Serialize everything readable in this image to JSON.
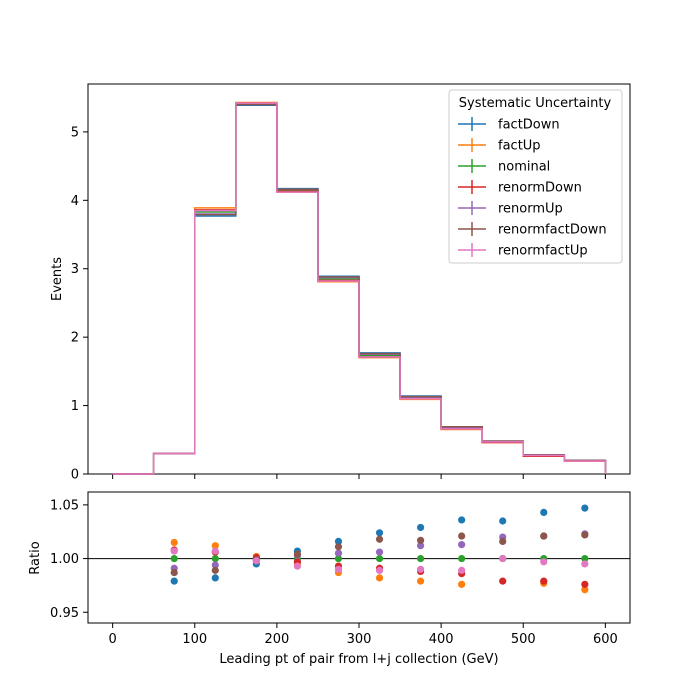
{
  "chart_data": {
    "type": "line",
    "xlabel": "Leading pt of pair from l+j collection (GeV)",
    "bin_edges": [
      0,
      50,
      100,
      150,
      200,
      250,
      300,
      350,
      400,
      450,
      500,
      550,
      600
    ],
    "xlim": [
      -30,
      630
    ],
    "main": {
      "ylabel": "Events",
      "ylim": [
        0,
        5.7
      ],
      "yticks": [
        0,
        1,
        2,
        3,
        4,
        5
      ],
      "legend": {
        "title": "Systematic Uncertainty",
        "placement": "top-right"
      },
      "series": [
        {
          "name": "factDown",
          "color": "#1f77b4",
          "values": [
            0.0,
            0.3,
            3.77,
            5.39,
            4.17,
            2.89,
            1.77,
            1.14,
            0.69,
            0.48,
            0.28,
            0.2
          ]
        },
        {
          "name": "factUp",
          "color": "#ff7f0e",
          "values": [
            0.0,
            0.3,
            3.89,
            5.43,
            4.12,
            2.81,
            1.7,
            1.09,
            0.65,
            0.46,
            0.26,
            0.19
          ]
        },
        {
          "name": "nominal",
          "color": "#2ca02c",
          "values": [
            0.0,
            0.3,
            3.83,
            5.41,
            4.14,
            2.85,
            1.73,
            1.11,
            0.67,
            0.47,
            0.27,
            0.2
          ]
        },
        {
          "name": "renormDown",
          "color": "#d62728",
          "values": [
            0.0,
            0.3,
            3.86,
            5.42,
            4.13,
            2.83,
            1.71,
            1.1,
            0.66,
            0.46,
            0.26,
            0.19
          ]
        },
        {
          "name": "renormUp",
          "color": "#9467bd",
          "values": [
            0.0,
            0.3,
            3.8,
            5.4,
            4.16,
            2.87,
            1.75,
            1.12,
            0.68,
            0.48,
            0.28,
            0.2
          ]
        },
        {
          "name": "renormfactDown",
          "color": "#8c564b",
          "values": [
            0.0,
            0.3,
            3.79,
            5.4,
            4.16,
            2.88,
            1.76,
            1.13,
            0.69,
            0.48,
            0.28,
            0.2
          ]
        },
        {
          "name": "renormfactUp",
          "color": "#e377c2",
          "values": [
            0.0,
            0.3,
            3.85,
            5.42,
            4.12,
            2.82,
            1.71,
            1.1,
            0.66,
            0.47,
            0.27,
            0.19
          ]
        }
      ]
    },
    "ratio": {
      "ylabel": "Ratio",
      "ylim": [
        0.94,
        1.062
      ],
      "yticks": [
        0.95,
        1.0,
        1.05
      ],
      "reference_line": 1.0,
      "x": [
        75,
        125,
        175,
        225,
        275,
        325,
        375,
        425,
        475,
        525,
        575
      ],
      "series": [
        {
          "name": "factDown",
          "color": "#1f77b4",
          "values": [
            0.979,
            0.982,
            0.995,
            1.007,
            1.016,
            1.024,
            1.029,
            1.036,
            1.035,
            1.043,
            1.047
          ]
        },
        {
          "name": "factUp",
          "color": "#ff7f0e",
          "values": [
            1.015,
            1.012,
            1.002,
            0.995,
            0.987,
            0.982,
            0.979,
            0.976,
            1.0,
            0.977,
            0.971
          ]
        },
        {
          "name": "nominal",
          "color": "#2ca02c",
          "values": [
            1.0,
            1.0,
            1.0,
            1.0,
            1.0,
            1.0,
            1.0,
            1.0,
            1.0,
            1.0,
            1.0
          ]
        },
        {
          "name": "renormDown",
          "color": "#d62728",
          "values": [
            1.008,
            1.006,
            1.001,
            0.997,
            0.993,
            0.991,
            0.988,
            0.986,
            0.979,
            0.979,
            0.976
          ]
        },
        {
          "name": "renormUp",
          "color": "#9467bd",
          "values": [
            0.991,
            0.994,
            0.998,
            1.003,
            1.005,
            1.006,
            1.012,
            1.013,
            1.02,
            1.021,
            1.023
          ]
        },
        {
          "name": "renormfactDown",
          "color": "#8c564b",
          "values": [
            0.987,
            0.989,
            0.999,
            1.004,
            1.011,
            1.018,
            1.017,
            1.021,
            1.016,
            1.021,
            1.022
          ]
        },
        {
          "name": "renormfactUp",
          "color": "#e377c2",
          "values": [
            1.007,
            1.007,
            0.998,
            0.993,
            0.99,
            0.989,
            0.99,
            0.989,
            1.0,
            0.997,
            0.995
          ]
        }
      ]
    }
  }
}
